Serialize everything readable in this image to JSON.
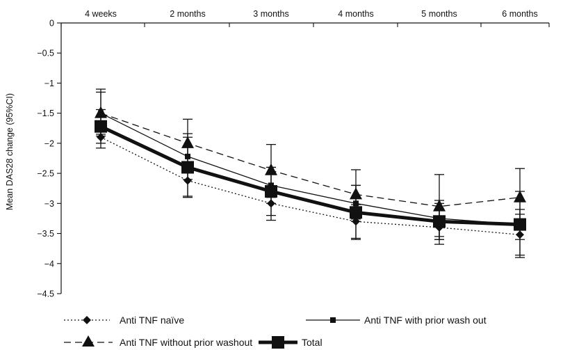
{
  "chart_data": {
    "type": "line",
    "title": "",
    "xlabel": "",
    "ylabel": "Mean DAS28 change (95%CI)",
    "categories": [
      "4 weeks",
      "2 months",
      "3 months",
      "4 months",
      "5 months",
      "6 months"
    ],
    "y_ticks": [
      "0",
      "−0.5",
      "−1",
      "−1.5",
      "−2",
      "−2.5",
      "−3",
      "−3.5",
      "−4",
      "−4.5"
    ],
    "ylim": [
      -4.5,
      0
    ],
    "x_axis_position": "top",
    "grid": false,
    "legend_position": "bottom",
    "series": [
      {
        "name": "Anti TNF naïve",
        "marker": "diamond",
        "line_style": "dotted",
        "values": [
          -1.9,
          -2.62,
          -3.0,
          -3.3,
          -3.4,
          -3.52
        ],
        "ci_low": [
          -2.08,
          -2.88,
          -3.28,
          -3.58,
          -3.68,
          -3.86
        ],
        "ci_high": [
          -1.72,
          -2.36,
          -2.72,
          -3.02,
          -3.12,
          -3.18
        ]
      },
      {
        "name": "Anti TNF with prior wash out",
        "marker": "small-square",
        "line_style": "solid-thin",
        "values": [
          -1.5,
          -2.22,
          -2.7,
          -3.0,
          -3.25,
          -3.35
        ],
        "ci_low": [
          -1.85,
          -2.6,
          -3.0,
          -3.3,
          -3.55,
          -3.6
        ],
        "ci_high": [
          -1.15,
          -1.84,
          -2.4,
          -2.7,
          -2.95,
          -3.1
        ]
      },
      {
        "name": "Anti TNF without prior washout",
        "marker": "triangle",
        "line_style": "dashed",
        "values": [
          -1.5,
          -2.0,
          -2.45,
          -2.85,
          -3.05,
          -2.9
        ],
        "ci_low": [
          -1.88,
          -2.42,
          -2.9,
          -3.26,
          -3.6,
          -3.38
        ],
        "ci_high": [
          -1.1,
          -1.6,
          -2.02,
          -2.44,
          -2.52,
          -2.42
        ]
      },
      {
        "name": "Total",
        "marker": "large-square",
        "line_style": "solid-thick",
        "values": [
          -1.72,
          -2.4,
          -2.8,
          -3.15,
          -3.3,
          -3.35
        ],
        "ci_low": [
          -2.0,
          -2.9,
          -3.2,
          -3.6,
          -3.6,
          -3.9
        ],
        "ci_high": [
          -1.44,
          -1.9,
          -2.4,
          -2.7,
          -3.0,
          -2.8
        ]
      }
    ]
  }
}
